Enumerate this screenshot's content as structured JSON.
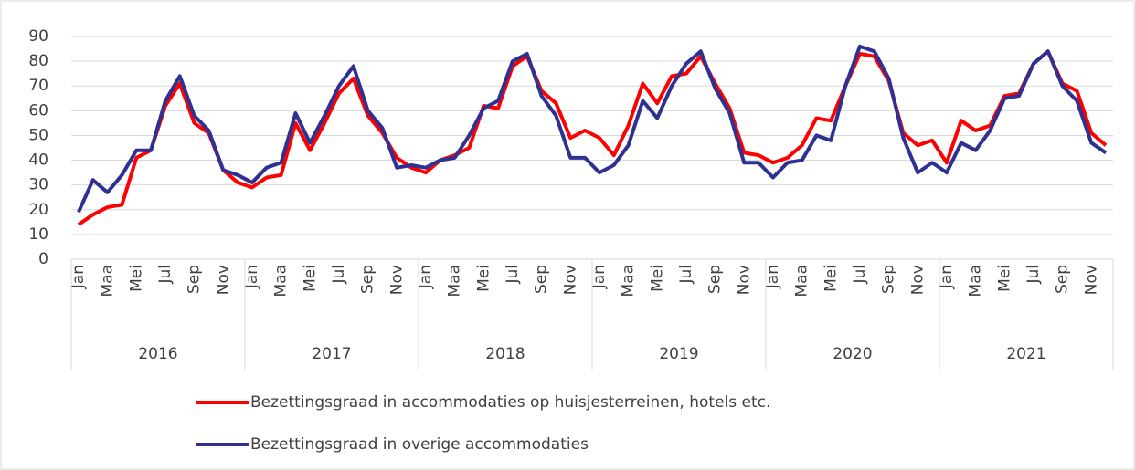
{
  "chart_data": {
    "type": "line",
    "categories": [
      "Jan",
      null,
      "Maa",
      null,
      "Mei",
      null,
      "Jul",
      null,
      "Sep",
      null,
      "Nov",
      null,
      "Jan",
      null,
      "Maa",
      null,
      "Mei",
      null,
      "Jul",
      null,
      "Sep",
      null,
      "Nov",
      null,
      "Jan",
      null,
      "Maa",
      null,
      "Mei",
      null,
      "Jul",
      null,
      "Sep",
      null,
      "Nov",
      null,
      "Jan",
      null,
      "Maa",
      null,
      "Mei",
      null,
      "Jul",
      null,
      "Sep",
      null,
      "Nov",
      null,
      "Jan",
      null,
      "Maa",
      null,
      "Mei",
      null,
      "Jul",
      null,
      "Sep",
      null,
      "Nov",
      null,
      "Jan",
      null,
      "Maa",
      null,
      "Mei",
      null,
      "Jul",
      null,
      "Sep",
      null,
      "Nov",
      null
    ],
    "groups": [
      "2016",
      "2017",
      "2018",
      "2019",
      "2020",
      "2021"
    ],
    "series": [
      {
        "name": "Bezettingsgraad in accommodaties op huisjesterreinen, hotels etc.",
        "color": "#ff0000",
        "values": [
          14,
          18,
          21,
          22,
          41,
          44,
          62,
          71,
          55,
          51,
          36,
          31,
          29,
          33,
          34,
          55,
          44,
          55,
          67,
          73,
          58,
          51,
          41,
          37,
          35,
          40,
          42,
          45,
          62,
          61,
          78,
          82,
          68,
          63,
          49,
          52,
          49,
          42,
          54,
          71,
          63,
          74,
          75,
          82,
          71,
          61,
          43,
          42,
          39,
          41,
          46,
          57,
          56,
          70,
          83,
          82,
          72,
          51,
          46,
          48,
          39,
          56,
          52,
          54,
          66,
          67,
          79,
          84,
          71,
          68,
          51,
          46
        ]
      },
      {
        "name": "Bezettingsgraad in overige accommodaties",
        "color": "#2e3192",
        "values": [
          19,
          32,
          27,
          34,
          44,
          44,
          64,
          74,
          58,
          52,
          36,
          34,
          31,
          37,
          39,
          59,
          47,
          58,
          70,
          78,
          60,
          53,
          37,
          38,
          37,
          40,
          41,
          50,
          61,
          64,
          80,
          83,
          66,
          58,
          41,
          41,
          35,
          38,
          46,
          64,
          57,
          70,
          79,
          84,
          69,
          59,
          39,
          39,
          33,
          39,
          40,
          50,
          48,
          70,
          86,
          84,
          73,
          49,
          35,
          39,
          35,
          47,
          44,
          52,
          65,
          66,
          79,
          84,
          70,
          64,
          47,
          43
        ]
      }
    ],
    "ylim": [
      0,
      90
    ],
    "yticks": [
      0,
      10,
      20,
      30,
      40,
      50,
      60,
      70,
      80,
      90
    ],
    "grid": true
  }
}
